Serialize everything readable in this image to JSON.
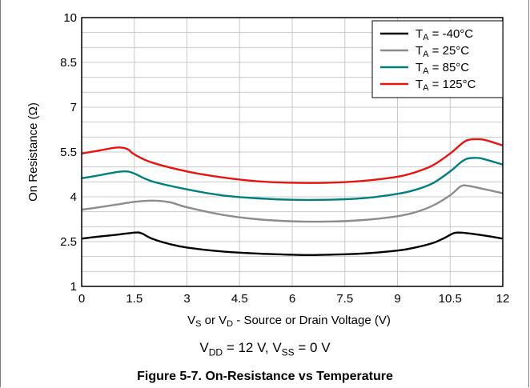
{
  "chart_data": {
    "type": "line",
    "xlabel": {
      "parts": [
        "V",
        "S",
        " or V",
        "D",
        " - Source or Drain Voltage (V)"
      ]
    },
    "ylabel": "On Resistance (Ω)",
    "xlim": [
      0,
      12
    ],
    "ylim": [
      1,
      10
    ],
    "xticks": [
      "0",
      "1.5",
      "3",
      "4.5",
      "6",
      "7.5",
      "9",
      "10.5",
      "12"
    ],
    "yticks": [
      "1",
      "2.5",
      "4",
      "5.5",
      "7",
      "8.5",
      "10"
    ],
    "grid": true,
    "legend_position": "top-right",
    "series": [
      {
        "name_parts": [
          "T",
          "A",
          " = -40°C"
        ],
        "color": "#000000",
        "x": [
          0,
          0.5,
          1.0,
          1.5,
          1.7,
          2.0,
          2.5,
          3.0,
          4.0,
          5.0,
          6.0,
          6.5,
          7.0,
          8.0,
          9.0,
          9.5,
          10.0,
          10.3,
          10.6,
          10.8,
          11.0,
          11.5,
          12.0
        ],
        "y": [
          2.6,
          2.67,
          2.73,
          2.8,
          2.78,
          2.6,
          2.42,
          2.3,
          2.17,
          2.1,
          2.06,
          2.05,
          2.06,
          2.1,
          2.2,
          2.3,
          2.45,
          2.6,
          2.78,
          2.8,
          2.78,
          2.7,
          2.6
        ]
      },
      {
        "name_parts": [
          "T",
          "A",
          " = 25°C"
        ],
        "color": "#8c8c8c",
        "x": [
          0,
          0.5,
          1.0,
          1.5,
          2.0,
          2.5,
          3.0,
          4.0,
          5.0,
          6.0,
          7.0,
          8.0,
          9.0,
          9.5,
          10.0,
          10.5,
          10.8,
          11.0,
          11.5,
          12.0
        ],
        "y": [
          3.57,
          3.65,
          3.74,
          3.83,
          3.87,
          3.82,
          3.65,
          3.4,
          3.25,
          3.18,
          3.17,
          3.22,
          3.35,
          3.48,
          3.7,
          4.05,
          4.35,
          4.37,
          4.25,
          4.12
        ]
      },
      {
        "name_parts": [
          "T",
          "A",
          " = 85°C"
        ],
        "color": "#007f7f",
        "x": [
          0,
          0.5,
          1.0,
          1.3,
          1.5,
          2.0,
          3.0,
          4.0,
          5.0,
          6.0,
          7.0,
          8.0,
          9.0,
          9.5,
          10.0,
          10.5,
          10.8,
          11.0,
          11.3,
          11.5,
          12.0
        ],
        "y": [
          4.62,
          4.72,
          4.83,
          4.85,
          4.78,
          4.52,
          4.25,
          4.05,
          3.95,
          3.9,
          3.9,
          3.95,
          4.1,
          4.23,
          4.45,
          4.85,
          5.15,
          5.28,
          5.3,
          5.25,
          5.08
        ]
      },
      {
        "name_parts": [
          "T",
          "A",
          " = 125°C"
        ],
        "color": "#e8140e",
        "x": [
          0,
          0.5,
          1.0,
          1.3,
          1.5,
          2.0,
          3.0,
          4.0,
          5.0,
          6.0,
          7.0,
          8.0,
          9.0,
          9.5,
          10.0,
          10.5,
          10.8,
          11.0,
          11.3,
          11.5,
          12.0
        ],
        "y": [
          5.45,
          5.55,
          5.65,
          5.6,
          5.42,
          5.15,
          4.85,
          4.65,
          4.52,
          4.47,
          4.47,
          4.53,
          4.67,
          4.82,
          5.05,
          5.45,
          5.75,
          5.9,
          5.93,
          5.9,
          5.72
        ]
      }
    ]
  },
  "condition": {
    "parts": [
      "V",
      "DD",
      " = 12 V, V",
      "SS",
      " = 0 V"
    ]
  },
  "caption": "Figure 5-7. On-Resistance vs Temperature"
}
